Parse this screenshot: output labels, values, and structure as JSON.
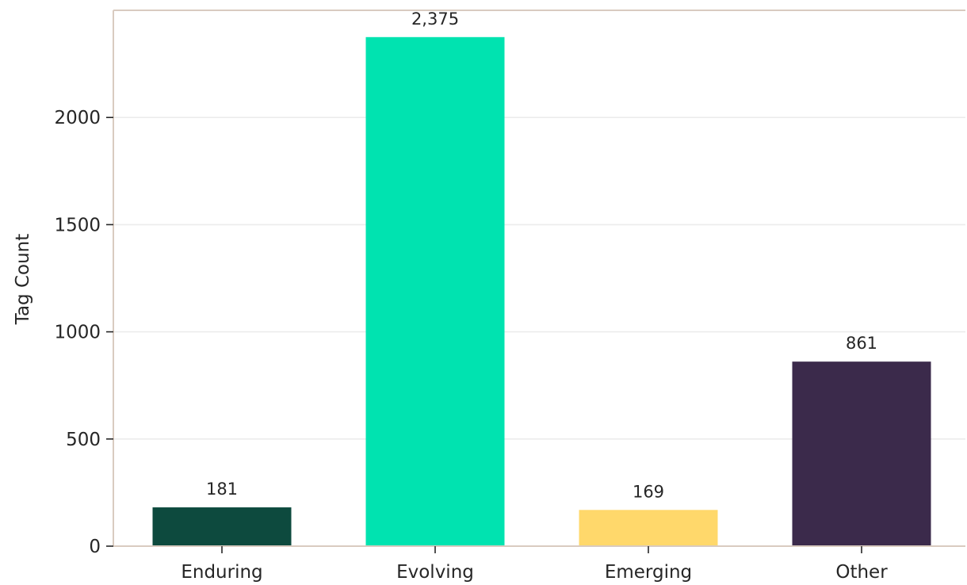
{
  "chart_data": {
    "type": "bar",
    "categories": [
      "Enduring",
      "Evolving",
      "Emerging",
      "Other"
    ],
    "values": [
      181,
      2375,
      169,
      861
    ],
    "value_labels": [
      "181",
      "2,375",
      "169",
      "861"
    ],
    "colors": [
      "#0d4a3e",
      "#00e3b0",
      "#ffd86b",
      "#3b2a4b"
    ],
    "title": "",
    "xlabel": "",
    "ylabel": "Tag Count",
    "ylim": [
      0,
      2500
    ],
    "yticks": [
      0,
      500,
      1000,
      1500,
      2000
    ],
    "ytick_labels": [
      "0",
      "500",
      "1000",
      "1500",
      "2000"
    ],
    "grid": "horizontal",
    "legend": "none",
    "spine_color": "#d9cbc0",
    "grid_color": "#ececec"
  }
}
